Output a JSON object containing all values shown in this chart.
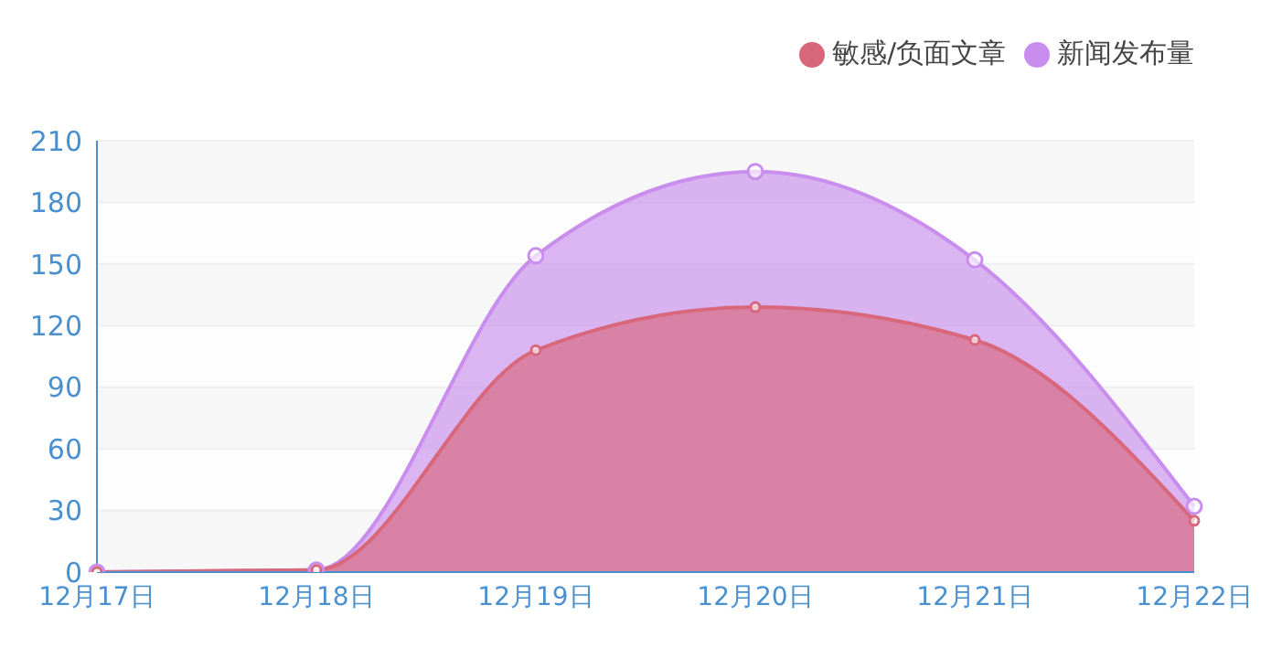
{
  "chart_data": {
    "type": "area",
    "categories": [
      "12月17日",
      "12月18日",
      "12月19日",
      "12月20日",
      "12月21日",
      "12月22日"
    ],
    "series": [
      {
        "name": "新闻发布量",
        "color": "#c98ded",
        "values": [
          0,
          1,
          154,
          195,
          152,
          32
        ]
      },
      {
        "name": "敏感/负面文章",
        "color": "#d8677c",
        "values": [
          0,
          1,
          108,
          129,
          113,
          25
        ]
      }
    ],
    "ylim": [
      0,
      210
    ],
    "yticks": [
      0,
      30,
      60,
      90,
      120,
      150,
      180,
      210
    ],
    "grid": "y",
    "legend": "top right",
    "marker": "circle"
  }
}
